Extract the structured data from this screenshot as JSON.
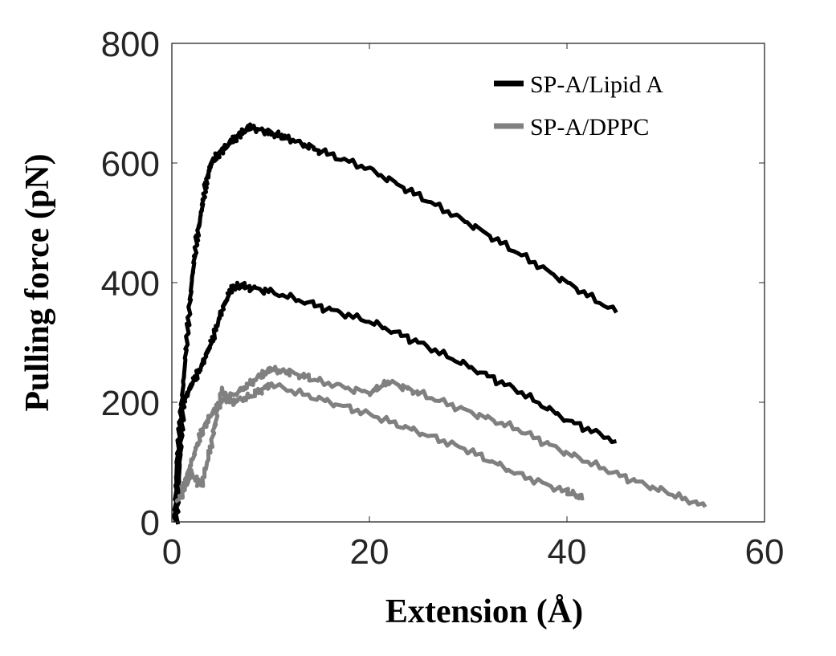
{
  "chart_data": {
    "type": "line",
    "title": "",
    "xlabel": "Extension (Å)",
    "ylabel": "Pulling force (pN)",
    "xlim": [
      0,
      60
    ],
    "ylim": [
      0,
      800
    ],
    "xticks": [
      "0",
      "20",
      "40",
      "60"
    ],
    "yticks": [
      "0",
      "200",
      "400",
      "600",
      "800"
    ],
    "grid": false,
    "legend_position": "top-right",
    "legend": [
      "SP-A/Lipid A",
      "SP-A/DPPC"
    ],
    "series": [
      {
        "name": "SP-A/Lipid A",
        "color": "#000000",
        "x": [
          0.3,
          0.5,
          1,
          1.5,
          2,
          2.5,
          3,
          3.5,
          4,
          5,
          6,
          7,
          8,
          10,
          12,
          15,
          20,
          25,
          30,
          35,
          40,
          45
        ],
        "y": [
          0,
          100,
          200,
          300,
          400,
          470,
          520,
          570,
          600,
          620,
          635,
          650,
          660,
          650,
          640,
          620,
          590,
          545,
          500,
          450,
          400,
          350
        ]
      },
      {
        "name": "SP-A/Lipid A",
        "color": "#000000",
        "x": [
          0.5,
          0.8,
          1.2,
          2,
          3,
          4,
          5,
          6,
          7,
          10,
          15,
          20,
          25,
          30,
          35,
          40,
          45
        ],
        "y": [
          0,
          100,
          200,
          230,
          260,
          300,
          350,
          390,
          395,
          385,
          360,
          335,
          300,
          260,
          220,
          170,
          135
        ]
      },
      {
        "name": "SP-A/DPPC",
        "color": "#808080",
        "x": [
          1,
          2,
          3,
          4,
          5,
          7,
          9,
          10,
          12,
          15,
          20,
          22,
          25,
          30,
          35,
          40,
          45,
          50,
          54
        ],
        "y": [
          50,
          100,
          150,
          180,
          200,
          220,
          245,
          255,
          250,
          235,
          215,
          235,
          215,
          185,
          155,
          115,
          80,
          50,
          25
        ]
      },
      {
        "name": "SP-A/DPPC",
        "color": "#808080",
        "x": [
          0.5,
          2,
          3,
          4,
          5,
          6,
          8,
          10,
          15,
          20,
          25,
          30,
          35,
          40,
          41.7
        ],
        "y": [
          30,
          80,
          60,
          130,
          220,
          200,
          210,
          230,
          205,
          180,
          150,
          120,
          80,
          50,
          40
        ]
      }
    ]
  }
}
